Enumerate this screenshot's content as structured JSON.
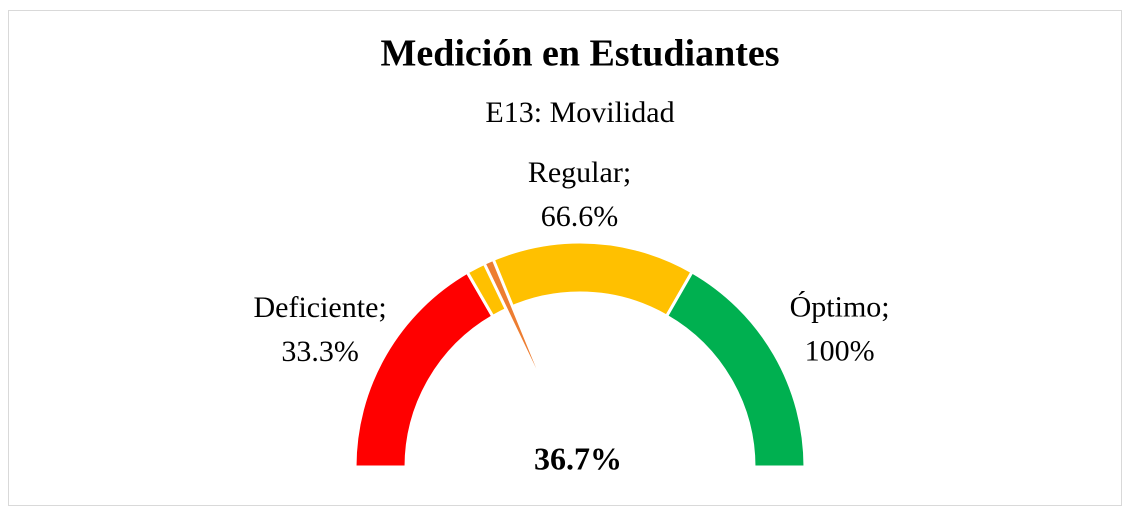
{
  "chart_data": {
    "type": "gauge",
    "title": "Medición en Estudiantes",
    "subtitle": "E13: Movilidad",
    "ylim": [
      0,
      100
    ],
    "categories": [
      "Deficiente;",
      "Regular;",
      "Óptimo;"
    ],
    "values": [
      33.3,
      66.6,
      100
    ],
    "value_labels": [
      "33.3%",
      "66.6%",
      "100%"
    ],
    "colors": [
      "#ff0000",
      "#ffc000",
      "#00b050"
    ],
    "needle": {
      "value": 36.7,
      "value_label": "36.7%",
      "color": "#ed7d31"
    }
  }
}
